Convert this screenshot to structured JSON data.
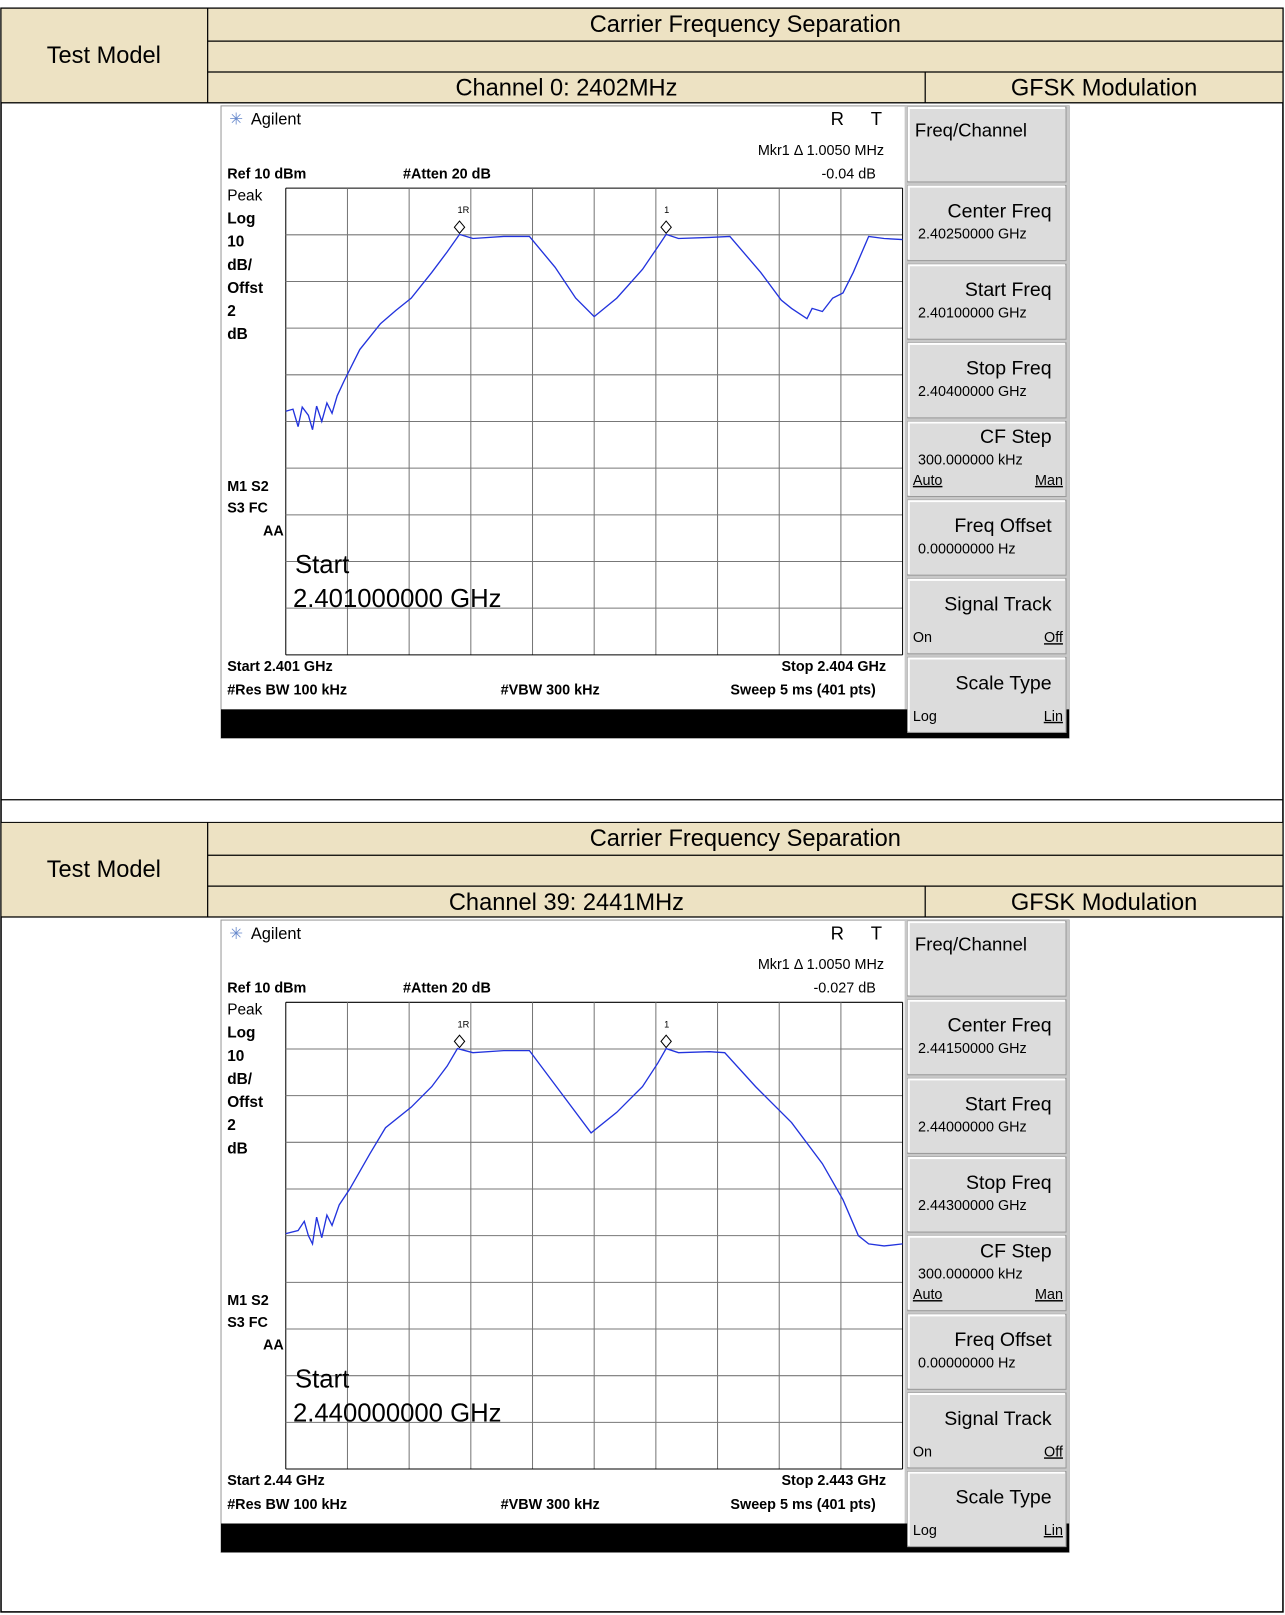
{
  "sections": [
    {
      "header": {
        "title": "Carrier Frequency Separation",
        "test_model": "Test Model",
        "channel": "Channel 0: 2402MHz",
        "modulation": "GFSK Modulation"
      },
      "analyzer": {
        "brand": "Agilent",
        "status": [
          "R",
          "T"
        ],
        "marker": "Mkr1 Δ  1.0050 MHz",
        "marker_delta": "-0.04 dB",
        "ref": "Ref 10 dBm",
        "atten": "#Atten 20 dB",
        "scale_labels": [
          "Peak",
          "Log",
          "10",
          "dB/",
          "Offst",
          "2",
          "dB"
        ],
        "flags": [
          "M1  S2",
          "S3  FC",
          "AA"
        ],
        "big_label": "Start",
        "big_value": "2.401000000 GHz",
        "start": "Start 2.401 GHz",
        "stop": "Stop 2.404 GHz",
        "rbw": "#Res BW 100 kHz",
        "vbw": "#VBW 300 kHz",
        "sweep": "Sweep 5 ms (401 pts)",
        "marker_labels": [
          "1R",
          "1"
        ],
        "softkeys": [
          {
            "label": "Freq/Channel"
          },
          {
            "label": "Center Freq",
            "value": "2.40250000 GHz"
          },
          {
            "label": "Start Freq",
            "value": "2.40100000 GHz"
          },
          {
            "label": "Stop Freq",
            "value": "2.40400000 GHz"
          },
          {
            "label": "CF Step",
            "value": "300.000000 kHz",
            "left": "Auto",
            "right": "Man"
          },
          {
            "label": "Freq Offset",
            "value": "0.00000000  Hz"
          },
          {
            "label": "Signal Track",
            "left": "On",
            "right": "Off"
          },
          {
            "label": "Scale Type",
            "left": "Log",
            "right": "Lin"
          }
        ]
      }
    },
    {
      "header": {
        "title": "Carrier Frequency Separation",
        "test_model": "Test Model",
        "channel": "Channel 39: 2441MHz",
        "modulation": "GFSK Modulation"
      },
      "analyzer": {
        "brand": "Agilent",
        "status": [
          "R",
          "T"
        ],
        "marker": "Mkr1 Δ  1.0050 MHz",
        "marker_delta": "-0.027 dB",
        "ref": "Ref 10 dBm",
        "atten": "#Atten 20 dB",
        "scale_labels": [
          "Peak",
          "Log",
          "10",
          "dB/",
          "Offst",
          "2",
          "dB"
        ],
        "flags": [
          "M1  S2",
          "S3  FC",
          "AA"
        ],
        "big_label": "Start",
        "big_value": "2.440000000 GHz",
        "start": "Start 2.44 GHz",
        "stop": "Stop 2.443 GHz",
        "rbw": "#Res BW 100 kHz",
        "vbw": "#VBW 300 kHz",
        "sweep": "Sweep 5 ms (401 pts)",
        "marker_labels": [
          "1R",
          "1"
        ],
        "softkeys": [
          {
            "label": "Freq/Channel"
          },
          {
            "label": "Center Freq",
            "value": "2.44150000 GHz"
          },
          {
            "label": "Start Freq",
            "value": "2.44000000 GHz"
          },
          {
            "label": "Stop Freq",
            "value": "2.44300000 GHz"
          },
          {
            "label": "CF Step",
            "value": "300.000000 kHz",
            "left": "Auto",
            "right": "Man"
          },
          {
            "label": "Freq Offset",
            "value": "0.00000000  Hz"
          },
          {
            "label": "Signal Track",
            "left": "On",
            "right": "Off"
          },
          {
            "label": "Scale Type",
            "left": "Log",
            "right": "Lin"
          }
        ]
      }
    }
  ]
}
